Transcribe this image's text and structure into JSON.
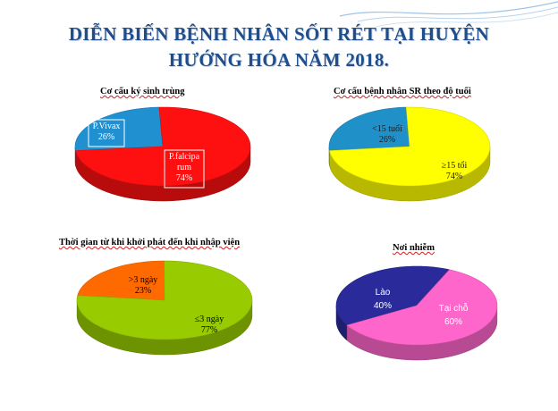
{
  "slide": {
    "title_line1": "DIỄN BIẾN BỆNH NHÂN SỐT RÉT TẠI HUYỆN",
    "title_line2": "HƯỚNG HÓA NĂM 2018."
  },
  "chart_data": [
    {
      "type": "pie",
      "title": "Cơ cấu ký sinh trùng",
      "slices": [
        {
          "label_lines": [
            "P.Vivax",
            "26%"
          ],
          "value": 26,
          "color": "#2090d0"
        },
        {
          "label_lines": [
            "P.falcipa",
            "rum",
            "74%"
          ],
          "value": 74,
          "color": "#ff1010"
        }
      ]
    },
    {
      "type": "pie",
      "title": "Cơ cấu bệnh nhân SR theo độ tuổi",
      "slices": [
        {
          "label_lines": [
            "<15 tuổi",
            "26%"
          ],
          "value": 26,
          "color": "#2090c8"
        },
        {
          "label_lines": [
            "≥15 tổi",
            "74%"
          ],
          "value": 74,
          "color": "#ffff00"
        }
      ]
    },
    {
      "type": "pie",
      "title": "Thời gian từ khi khởi phát đến khi nhập viện",
      "slices": [
        {
          "label_lines": [
            ">3 ngày",
            "23%"
          ],
          "value": 23,
          "color": "#ff6a00"
        },
        {
          "label_lines": [
            "≤3 ngày",
            "77%"
          ],
          "value": 77,
          "color": "#99cc00"
        }
      ]
    },
    {
      "type": "pie",
      "title": "Nơi nhiễm",
      "slices": [
        {
          "label_lines": [
            "Lào",
            "40%"
          ],
          "value": 40,
          "color": "#2a2a9a"
        },
        {
          "label_lines": [
            "Tại chỗ",
            "60%"
          ],
          "value": 60,
          "color": "#ff66cc"
        }
      ]
    }
  ]
}
